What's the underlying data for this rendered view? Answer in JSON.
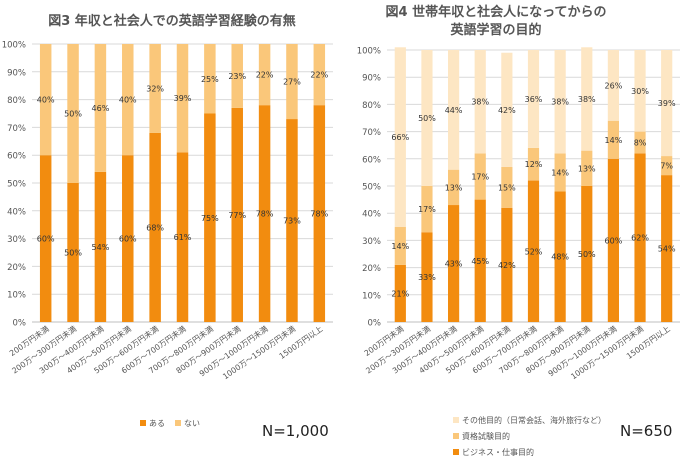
{
  "chart_data": [
    {
      "type": "bar",
      "stacked": true,
      "title": "図3 年収と社会人での英語学習経験の有無",
      "categories": [
        "200万円未満",
        "200万～300万円未満",
        "300万～400万円未満",
        "400万～500万円未満",
        "500万～600万円未満",
        "600万～700万円未満",
        "700万～800万円未満",
        "800万～900万円未満",
        "900万～1000万円未満",
        "1000万～1500万円未満",
        "1500万円以上"
      ],
      "series": [
        {
          "name": "ある",
          "color": "#F28C0F",
          "values": [
            60,
            50,
            54,
            60,
            68,
            61,
            75,
            77,
            78,
            73,
            78
          ]
        },
        {
          "name": "ない",
          "color": "#FAC77A",
          "values": [
            40,
            50,
            46,
            40,
            32,
            39,
            25,
            23,
            22,
            27,
            22
          ]
        }
      ],
      "ylim": [
        0,
        100
      ],
      "yticks": [
        "0%",
        "10%",
        "20%",
        "30%",
        "40%",
        "50%",
        "60%",
        "70%",
        "80%",
        "90%",
        "100%"
      ],
      "grid": true,
      "legend": "bottom",
      "note": "N=1,000"
    },
    {
      "type": "bar",
      "stacked": true,
      "title": "図4 世帯年収と社会人になってからの 英語学習の目的",
      "categories": [
        "200万円未満",
        "200万～300万円未満",
        "300万～400万円未満",
        "400万～500万円未満",
        "500万～600万円未満",
        "600万～700万円未満",
        "700万～800万円未満",
        "800万～900万円未満",
        "900万～1000万円未満",
        "1000万～1500万円未満",
        "1500万円以上"
      ],
      "series": [
        {
          "name": "ビジネス・仕事目的",
          "color": "#F28C0F",
          "values": [
            21,
            33,
            43,
            45,
            42,
            52,
            48,
            50,
            60,
            62,
            54
          ]
        },
        {
          "name": "資格試験目的",
          "color": "#FAC77A",
          "values": [
            14,
            17,
            13,
            17,
            15,
            12,
            14,
            13,
            14,
            8,
            7
          ]
        },
        {
          "name": "その他目的（日常会話、海外旅行など）",
          "color": "#FDE6C3",
          "values": [
            66,
            50,
            44,
            38,
            42,
            36,
            38,
            38,
            26,
            30,
            39
          ]
        }
      ],
      "ylim": [
        0,
        100
      ],
      "yticks": [
        "0%",
        "10%",
        "20%",
        "30%",
        "40%",
        "50%",
        "60%",
        "70%",
        "80%",
        "90%",
        "100%"
      ],
      "grid": true,
      "legend": "bottom",
      "note": "N=650"
    }
  ]
}
